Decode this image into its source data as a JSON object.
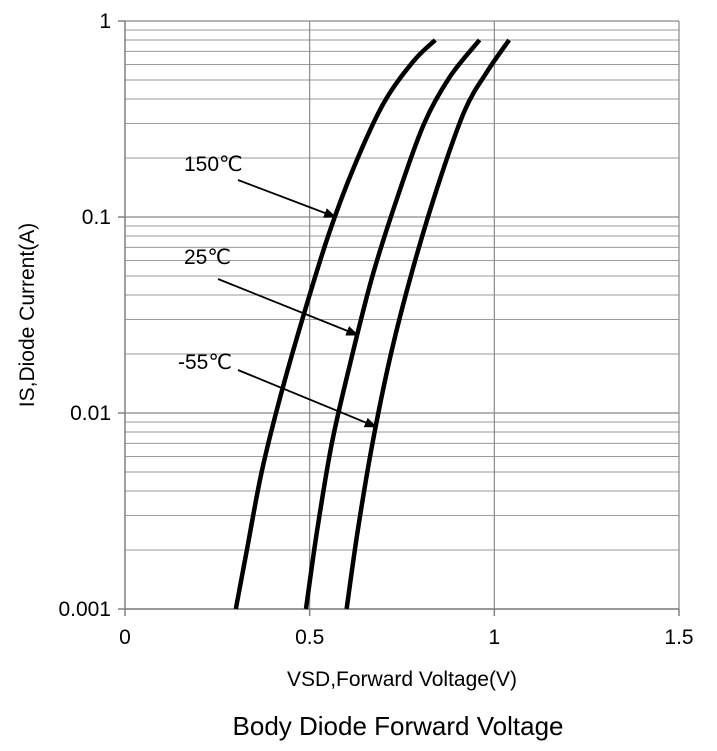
{
  "chart_data": {
    "type": "line",
    "title": "Body Diode Forward Voltage",
    "xlabel": "VSD,Forward Voltage(V)",
    "ylabel": "IS,Diode Current(A)",
    "xlim": [
      0,
      1.5
    ],
    "ylim": [
      0.001,
      1
    ],
    "yscale": "log",
    "grid": true,
    "x_ticks": [
      {
        "value": 0,
        "label": "0"
      },
      {
        "value": 0.5,
        "label": "0.5"
      },
      {
        "value": 1,
        "label": "1"
      },
      {
        "value": 1.5,
        "label": "1.5"
      }
    ],
    "y_ticks": [
      {
        "value": 0.001,
        "label": "0.001"
      },
      {
        "value": 0.01,
        "label": "0.01"
      },
      {
        "value": 0.1,
        "label": "0.1"
      },
      {
        "value": 1,
        "label": "1"
      }
    ],
    "series": [
      {
        "name": "150℃",
        "points": [
          [
            0.3,
            0.001
          ],
          [
            0.33,
            0.002
          ],
          [
            0.37,
            0.005
          ],
          [
            0.42,
            0.012
          ],
          [
            0.48,
            0.03
          ],
          [
            0.55,
            0.08
          ],
          [
            0.62,
            0.18
          ],
          [
            0.7,
            0.38
          ],
          [
            0.78,
            0.62
          ],
          [
            0.84,
            0.8
          ]
        ]
      },
      {
        "name": "25℃",
        "points": [
          [
            0.49,
            0.001
          ],
          [
            0.52,
            0.0025
          ],
          [
            0.56,
            0.007
          ],
          [
            0.61,
            0.018
          ],
          [
            0.67,
            0.05
          ],
          [
            0.74,
            0.13
          ],
          [
            0.81,
            0.3
          ],
          [
            0.88,
            0.52
          ],
          [
            0.96,
            0.8
          ]
        ]
      },
      {
        "name": "-55℃",
        "points": [
          [
            0.6,
            0.001
          ],
          [
            0.63,
            0.0025
          ],
          [
            0.67,
            0.007
          ],
          [
            0.72,
            0.02
          ],
          [
            0.78,
            0.055
          ],
          [
            0.85,
            0.15
          ],
          [
            0.92,
            0.35
          ],
          [
            0.98,
            0.55
          ],
          [
            1.04,
            0.8
          ]
        ]
      }
    ],
    "annotations": [
      {
        "text": "150℃",
        "target": [
          0.57,
          0.1
        ]
      },
      {
        "text": "25℃",
        "target": [
          0.63,
          0.025
        ]
      },
      {
        "text": "-55℃",
        "target": [
          0.68,
          0.0085
        ]
      }
    ]
  }
}
